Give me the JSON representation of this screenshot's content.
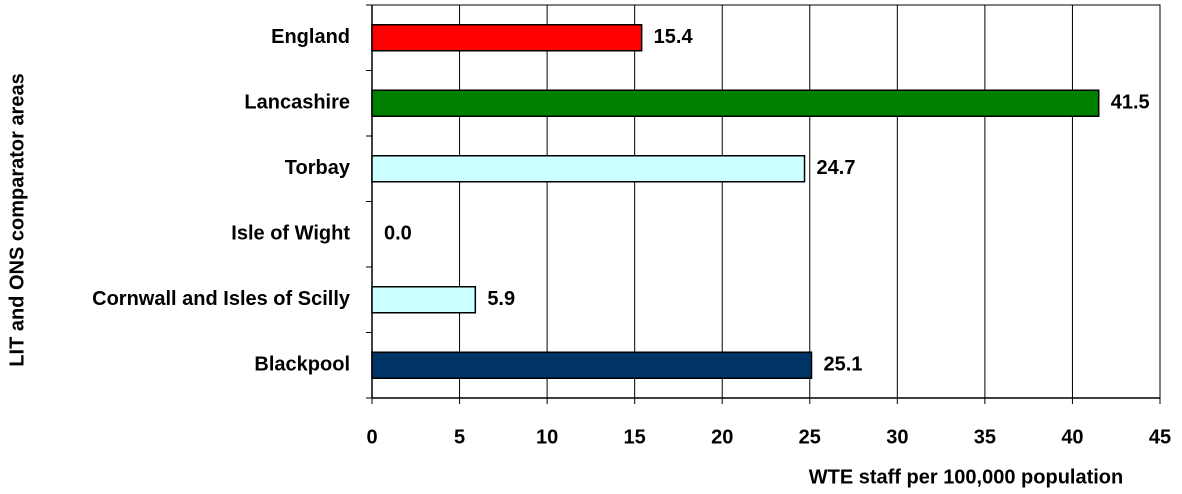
{
  "chart_data": {
    "type": "hbar",
    "xlabel": "WTE staff per 100,000 population",
    "ylabel": "LIT and ONS comparator areas",
    "categories": [
      "England",
      "Lancashire",
      "Torbay",
      "Isle of Wight",
      "Cornwall and Isles of Scilly",
      "Blackpool"
    ],
    "values": [
      15.4,
      41.5,
      24.7,
      0,
      5.9,
      25.1
    ],
    "value_labels": [
      "15.4",
      "41.5",
      "24.7",
      "0.0",
      "5.9",
      "25.1"
    ],
    "colors": [
      "#ff0000",
      "#008000",
      "#ccffff",
      "#ccffff",
      "#ccffff",
      "#003366"
    ],
    "xlim": [
      0,
      45
    ],
    "xticks": [
      0,
      5,
      10,
      15,
      20,
      25,
      30,
      35,
      40,
      45
    ],
    "grid": true
  }
}
